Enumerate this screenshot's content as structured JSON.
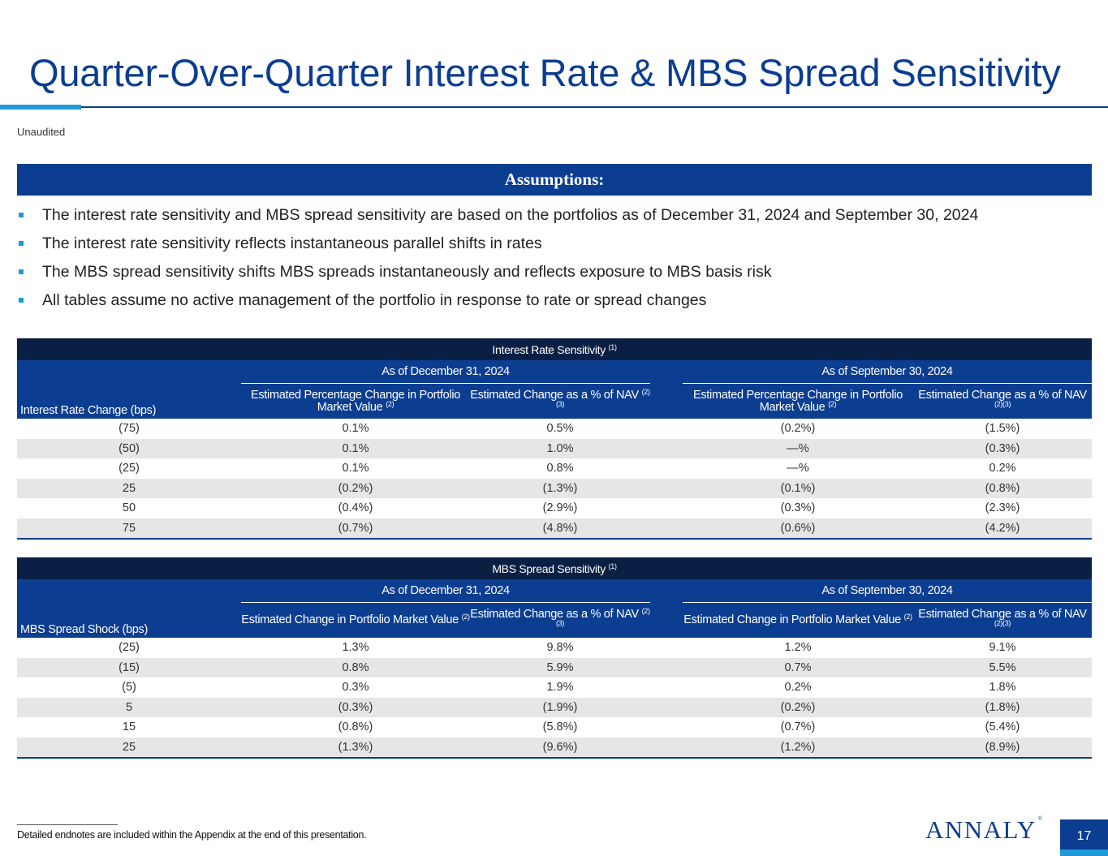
{
  "page": {
    "title": "Quarter-Over-Quarter Interest Rate & MBS Spread Sensitivity",
    "unaudited": "Unaudited",
    "footnote": "Detailed endnotes are included within the Appendix at the end of this presentation.",
    "logo": "ANNALY",
    "logo_mark": "®",
    "page_number": "17"
  },
  "assumptions": {
    "heading": "Assumptions:",
    "items": [
      "The interest rate sensitivity and MBS spread sensitivity are based on the portfolios as of December 31, 2024 and September 30, 2024",
      "The interest rate sensitivity reflects instantaneous parallel shifts in rates",
      "The MBS spread sensitivity shifts MBS spreads instantaneously and reflects exposure to MBS basis risk",
      "All tables assume no active management of the portfolio in response to rate or spread changes"
    ]
  },
  "rate_table": {
    "title": "Interest Rate Sensitivity",
    "title_sup": "(1)",
    "row_header": "Interest Rate Change (bps)",
    "period1": "As of December 31, 2024",
    "period2": "As of September 30, 2024",
    "col_pmv": "Estimated Percentage Change in Portfolio Market Value",
    "col_pmv_sup": "(2)",
    "col_nav": "Estimated Change as a % of NAV",
    "col_nav_sup": "(2)(3)",
    "rows": [
      [
        "(75)",
        "0.1%",
        "0.5%",
        "(0.2%)",
        "(1.5%)"
      ],
      [
        "(50)",
        "0.1%",
        "1.0%",
        "—%",
        "(0.3%)"
      ],
      [
        "(25)",
        "0.1%",
        "0.8%",
        "—%",
        "0.2%"
      ],
      [
        "25",
        "(0.2%)",
        "(1.3%)",
        "(0.1%)",
        "(0.8%)"
      ],
      [
        "50",
        "(0.4%)",
        "(2.9%)",
        "(0.3%)",
        "(2.3%)"
      ],
      [
        "75",
        "(0.7%)",
        "(4.8%)",
        "(0.6%)",
        "(4.2%)"
      ]
    ]
  },
  "spread_table": {
    "title": "MBS Spread Sensitivity",
    "title_sup": "(1)",
    "row_header": "MBS Spread Shock (bps)",
    "period1": "As of December 31, 2024",
    "period2": "As of September 30, 2024",
    "col_pmv": "Estimated Change in Portfolio Market Value",
    "col_pmv_sup": "(2)",
    "col_nav": "Estimated Change as a % of NAV",
    "col_nav_sup": "(2)(3)",
    "rows": [
      [
        "(25)",
        "1.3%",
        "9.8%",
        "1.2%",
        "9.1%"
      ],
      [
        "(15)",
        "0.8%",
        "5.9%",
        "0.7%",
        "5.5%"
      ],
      [
        "(5)",
        "0.3%",
        "1.9%",
        "0.2%",
        "1.8%"
      ],
      [
        "5",
        "(0.3%)",
        "(1.9%)",
        "(0.2%)",
        "(1.8%)"
      ],
      [
        "15",
        "(0.8%)",
        "(5.8%)",
        "(0.7%)",
        "(5.4%)"
      ],
      [
        "25",
        "(1.3%)",
        "(9.6%)",
        "(1.2%)",
        "(8.9%)"
      ]
    ]
  },
  "colors": {
    "navy": "#0b3d91",
    "dark_navy": "#0a1f44",
    "accent": "#1e9ad6",
    "stripe": "#e6e6e6"
  }
}
